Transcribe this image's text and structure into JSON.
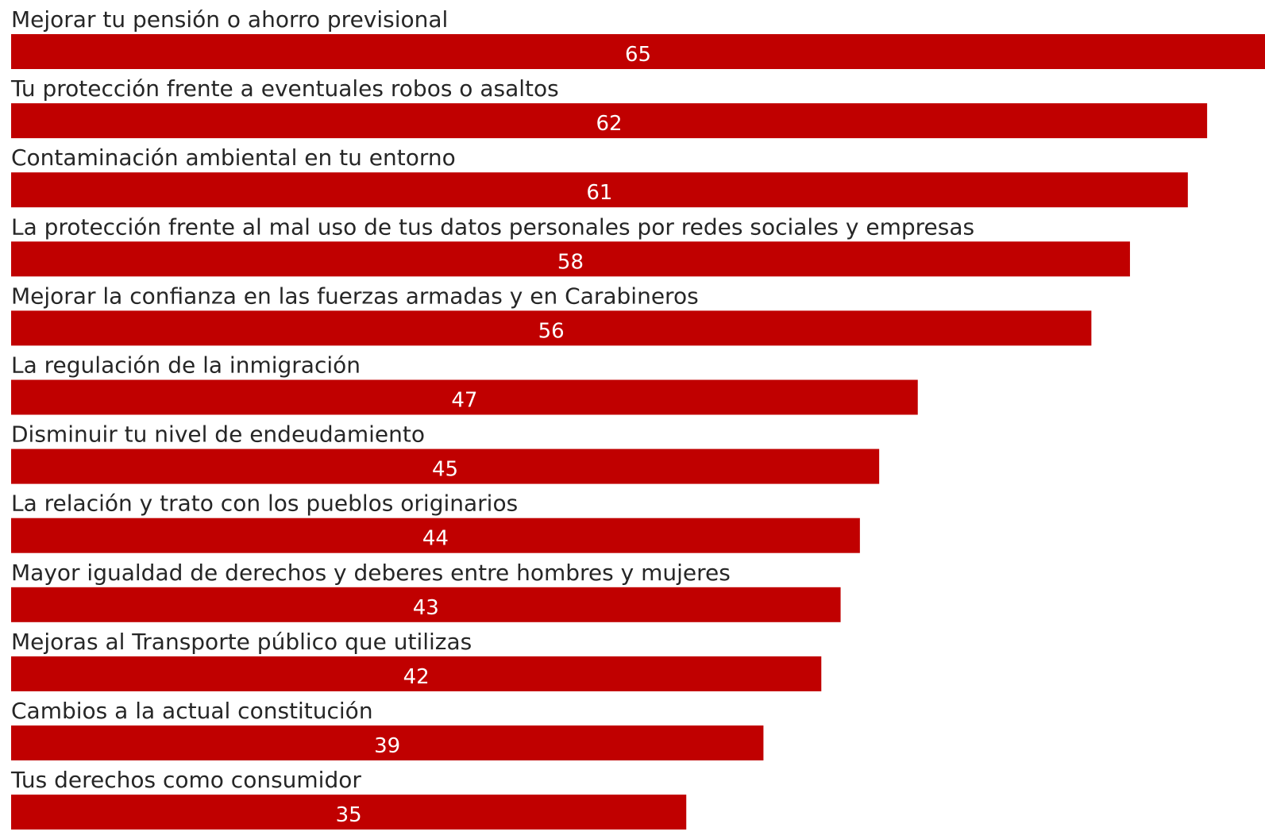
{
  "chart_data": {
    "type": "bar",
    "orientation": "horizontal",
    "categories": [
      "Mejorar tu pensión o ahorro previsional",
      "Tu protección frente a eventuales robos o asaltos",
      "Contaminación ambiental en tu entorno",
      "La protección frente al mal uso de tus datos personales por redes sociales y empresas",
      "Mejorar la confianza en las fuerzas armadas y en Carabineros",
      "La regulación de la inmigración",
      "Disminuir tu nivel de endeudamiento",
      "La relación y trato con los pueblos originarios",
      "Mayor igualdad de derechos y deberes entre hombres y mujeres",
      "Mejoras al Transporte público que utilizas",
      "Cambios a la actual constitución",
      "Tus derechos como consumidor"
    ],
    "values": [
      65,
      62,
      61,
      58,
      56,
      47,
      45,
      44,
      43,
      42,
      39,
      35
    ],
    "value_labels": [
      "65",
      "62",
      "61",
      "58",
      "56",
      "47",
      "45",
      "44",
      "43",
      "42",
      "39",
      "35"
    ],
    "xlim": [
      0,
      65
    ],
    "grid": false,
    "legend": "none",
    "title": "",
    "xlabel": "",
    "ylabel": "",
    "bar_color": "#c00000",
    "label_color": "#262626",
    "value_label_color": "#ffffff"
  }
}
